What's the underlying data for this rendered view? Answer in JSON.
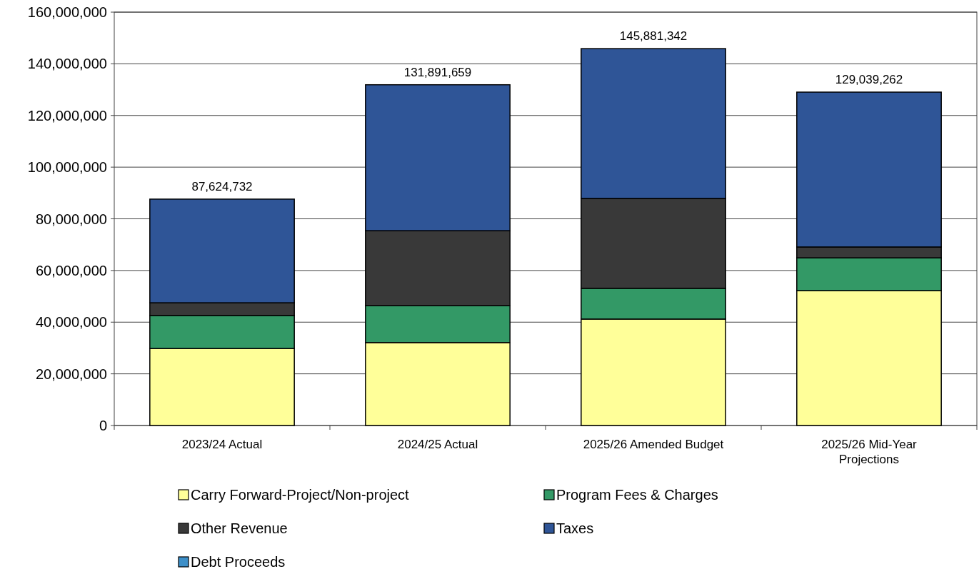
{
  "chart_data": {
    "type": "bar",
    "stacked": true,
    "categories": [
      "2023/24 Actual",
      "2024/25 Actual",
      "2025/26 Amended Budget",
      "2025/26 Mid-Year Projections"
    ],
    "series": [
      {
        "name": "Carry Forward-Project/Non-project",
        "color": "#ffff99",
        "values": [
          29800000,
          32100000,
          41200000,
          52200000
        ]
      },
      {
        "name": "Program Fees & Charges",
        "color": "#339966",
        "values": [
          12800000,
          14300000,
          11900000,
          12700000
        ]
      },
      {
        "name": "Other Revenue",
        "color": "#393939",
        "values": [
          4900000,
          29000000,
          34800000,
          4200000
        ]
      },
      {
        "name": "Taxes",
        "color": "#2f5597",
        "values": [
          40124732,
          56491659,
          57981342,
          59939262
        ]
      },
      {
        "name": "Debt Proceeds",
        "color": "#3d8fc8",
        "values": [
          0,
          0,
          0,
          0
        ]
      }
    ],
    "totals": [
      "87,624,732",
      "131,891,659",
      "145,881,342",
      "129,039,262"
    ],
    "ylim": [
      0,
      160000000
    ],
    "yticks": [
      {
        "value": 0,
        "label": "0"
      },
      {
        "value": 20000000,
        "label": "20,000,000"
      },
      {
        "value": 40000000,
        "label": "40,000,000"
      },
      {
        "value": 60000000,
        "label": "60,000,000"
      },
      {
        "value": 80000000,
        "label": "80,000,000"
      },
      {
        "value": 100000000,
        "label": "100,000,000"
      },
      {
        "value": 120000000,
        "label": "120,000,000"
      },
      {
        "value": 140000000,
        "label": "140,000,000"
      },
      {
        "value": 160000000,
        "label": "160,000,000"
      }
    ],
    "grid": "y",
    "legend": "bottom"
  }
}
